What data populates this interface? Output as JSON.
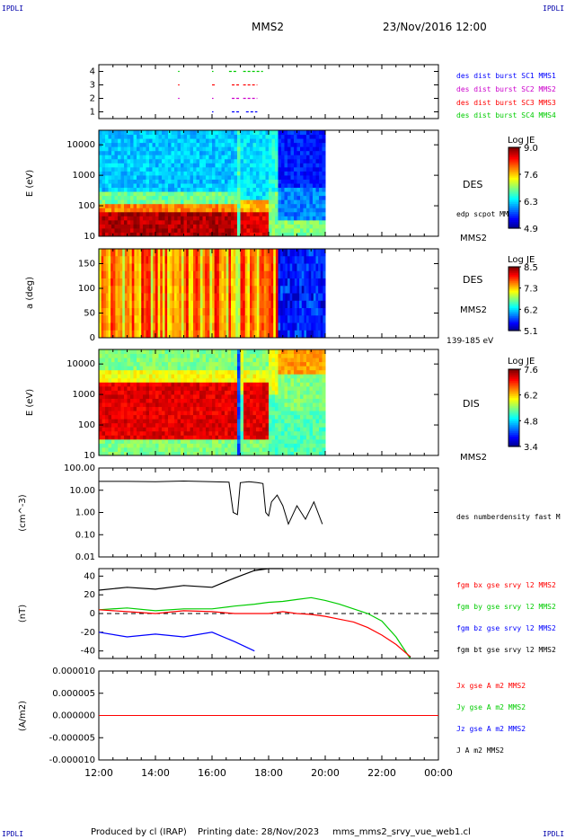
{
  "header": {
    "corner_tl": "IPDLI",
    "corner_tr": "IPDLI",
    "corner_bl": "IPDLI",
    "corner_br": "IPDLI",
    "spacecraft": "MMS2",
    "datetime": "23/Nov/2016 12:00"
  },
  "footer": {
    "produced_by": "Produced by cl (IRAP)",
    "printing_date": "Printing date: 28/Nov/2023",
    "script_name": "mms_mms2_srvy_vue_web1.cl"
  },
  "time_axis": {
    "start": "12:00",
    "end": "00:00",
    "ticks": [
      "12:00",
      "14:00",
      "16:00",
      "18:00",
      "20:00",
      "22:00",
      "00:00"
    ]
  },
  "colors": {
    "blue": "#0000ff",
    "magenta": "#cc00cc",
    "red": "#ff0000",
    "green": "#00cc00",
    "black": "#000000"
  },
  "chart_data": [
    {
      "type": "scatter",
      "panel": "burst-availability",
      "yticks": [
        "1",
        "2",
        "3",
        "4"
      ],
      "ylim": [
        0.5,
        4.5
      ],
      "legend": [
        {
          "label": "des dist burst SC1 MMS1",
          "color": "#0000ff"
        },
        {
          "label": "des dist burst SC2 MMS2",
          "color": "#cc00cc"
        },
        {
          "label": "des dist burst SC3 MMS3",
          "color": "#ff0000"
        },
        {
          "label": "des dist burst SC4 MMS4",
          "color": "#00cc00"
        }
      ],
      "series": [
        {
          "y": 1,
          "color": "#0000ff",
          "intervals": [
            [
              16.0,
              16.05
            ],
            [
              16.7,
              17.0
            ],
            [
              17.2,
              17.6
            ]
          ]
        },
        {
          "y": 2,
          "color": "#cc00cc",
          "intervals": [
            [
              14.8,
              14.85
            ],
            [
              16.0,
              16.05
            ],
            [
              16.7,
              17.0
            ],
            [
              17.1,
              17.6
            ]
          ]
        },
        {
          "y": 3,
          "color": "#ff0000",
          "intervals": [
            [
              14.8,
              14.85
            ],
            [
              16.0,
              16.1
            ],
            [
              16.7,
              17.0
            ],
            [
              17.1,
              17.6
            ]
          ]
        },
        {
          "y": 4,
          "color": "#00cc00",
          "intervals": [
            [
              14.8,
              14.85
            ],
            [
              16.0,
              16.05
            ],
            [
              16.6,
              16.9
            ],
            [
              17.1,
              17.8
            ]
          ]
        }
      ]
    },
    {
      "type": "heatmap",
      "panel": "des-energy-spectrogram",
      "ylabel": "E (eV)",
      "yscale": "log",
      "ylim": [
        10,
        30000
      ],
      "yticks": [
        "10",
        "100",
        "1000",
        "10000"
      ],
      "instrument": "DES",
      "spacecraft": "MMS2",
      "overlay_label": "edp scpot MMS2",
      "colorbar": {
        "title": "Log JE",
        "ticks": [
          "9.0",
          "7.6",
          "6.3",
          "4.9"
        ],
        "range": [
          4.9,
          9.0
        ]
      },
      "data_end": 20.0
    },
    {
      "type": "heatmap",
      "panel": "des-pitch-angle",
      "ylabel": "a (deg)",
      "ylim": [
        0,
        180
      ],
      "yticks": [
        "0",
        "50",
        "100",
        "150"
      ],
      "instrument": "DES",
      "spacecraft": "MMS2",
      "energy_range": "139-185 eV",
      "colorbar": {
        "title": "Log JE",
        "ticks": [
          "8.5",
          "7.3",
          "6.2",
          "5.1"
        ],
        "range": [
          5.1,
          8.5
        ]
      },
      "data_end": 20.0
    },
    {
      "type": "heatmap",
      "panel": "dis-energy-spectrogram",
      "ylabel": "E (eV)",
      "yscale": "log",
      "ylim": [
        10,
        30000
      ],
      "yticks": [
        "10",
        "100",
        "1000",
        "10000"
      ],
      "instrument": "DIS",
      "spacecraft": "MMS2",
      "colorbar": {
        "title": "Log JE",
        "ticks": [
          "7.6",
          "6.2",
          "4.8",
          "3.4"
        ],
        "range": [
          3.4,
          7.6
        ]
      },
      "data_end": 20.0
    },
    {
      "type": "line",
      "panel": "density",
      "ylabel": "(cm^-3)",
      "yscale": "log",
      "ylim": [
        0.01,
        100
      ],
      "yticks": [
        "0.01",
        "0.10",
        "1.00",
        "10.00",
        "100.00"
      ],
      "legend": [
        {
          "label": "des numberdensity fast M",
          "color": "#000000"
        }
      ],
      "x": [
        12.0,
        13.0,
        14.0,
        15.0,
        16.0,
        16.6,
        16.75,
        16.9,
        17.0,
        17.3,
        17.6,
        17.8,
        17.9,
        18.0,
        18.1,
        18.3,
        18.5,
        18.7,
        19.0,
        19.3,
        19.6,
        19.9
      ],
      "values": [
        25,
        25,
        24,
        26,
        24,
        23,
        1.0,
        0.8,
        22,
        24,
        22,
        20,
        1.0,
        0.7,
        3.0,
        6.0,
        2.0,
        0.3,
        2.0,
        0.5,
        3.0,
        0.3
      ]
    },
    {
      "type": "line",
      "panel": "magnetic-field",
      "ylabel": "(nT)",
      "ylim": [
        -48,
        48
      ],
      "yticks": [
        "-40",
        "-20",
        "0",
        "20",
        "40"
      ],
      "legend": [
        {
          "label": "fgm bx gse srvy l2 MMS2",
          "color": "#ff0000"
        },
        {
          "label": "fgm by gse srvy l2 MMS2",
          "color": "#00cc00"
        },
        {
          "label": "fgm bz gse srvy l2 MMS2",
          "color": "#0000ff"
        },
        {
          "label": "fgm bt gse srvy l2 MMS2",
          "color": "#000000"
        }
      ],
      "x": [
        12.0,
        13.0,
        14.0,
        15.0,
        16.0,
        16.8,
        17.5,
        18.0,
        18.5,
        19.0,
        19.5,
        20.0,
        20.5,
        21.0,
        21.5,
        22.0,
        22.5,
        23.0
      ],
      "series": [
        {
          "name": "fgm bx gse srvy l2 MMS2",
          "color": "#ff0000",
          "values": [
            4,
            2,
            0,
            3,
            2,
            0,
            0,
            0,
            2,
            0,
            -1,
            -3,
            -6,
            -9,
            -15,
            -23,
            -33,
            -46
          ]
        },
        {
          "name": "fgm by gse srvy l2 MMS2",
          "color": "#00cc00",
          "values": [
            4,
            6,
            3,
            5,
            5,
            8,
            10,
            12,
            13,
            15,
            17,
            14,
            10,
            5,
            0,
            -8,
            -25,
            -48
          ]
        },
        {
          "name": "fgm bz gse srvy l2 MMS2",
          "color": "#0000ff",
          "values": [
            -20,
            -25,
            -22,
            -25,
            -20,
            -30,
            -40,
            null,
            null,
            null,
            null,
            null,
            null,
            null,
            null,
            null,
            null,
            null
          ]
        },
        {
          "name": "fgm bt gse srvy l2 MMS2",
          "color": "#000000",
          "values": [
            25,
            28,
            26,
            30,
            28,
            38,
            46,
            48,
            48,
            null,
            null,
            null,
            null,
            null,
            null,
            null,
            null,
            null
          ]
        }
      ]
    },
    {
      "type": "line",
      "panel": "current-density",
      "ylabel": "(A/m2)",
      "ylim": [
        -1e-05,
        1e-05
      ],
      "yticks": [
        "-0.000010",
        "-0.000005",
        "0.000000",
        "0.000005",
        "0.000010"
      ],
      "legend": [
        {
          "label": "Jx gse A m2 MMS2",
          "color": "#ff0000"
        },
        {
          "label": "Jy gse A m2 MMS2",
          "color": "#00cc00"
        },
        {
          "label": "Jz gse A m2 MMS2",
          "color": "#0000ff"
        },
        {
          "label": "J A m2 MMS2",
          "color": "#000000"
        }
      ],
      "x": [
        12.0,
        24.0
      ],
      "values": [
        0,
        0
      ]
    }
  ]
}
